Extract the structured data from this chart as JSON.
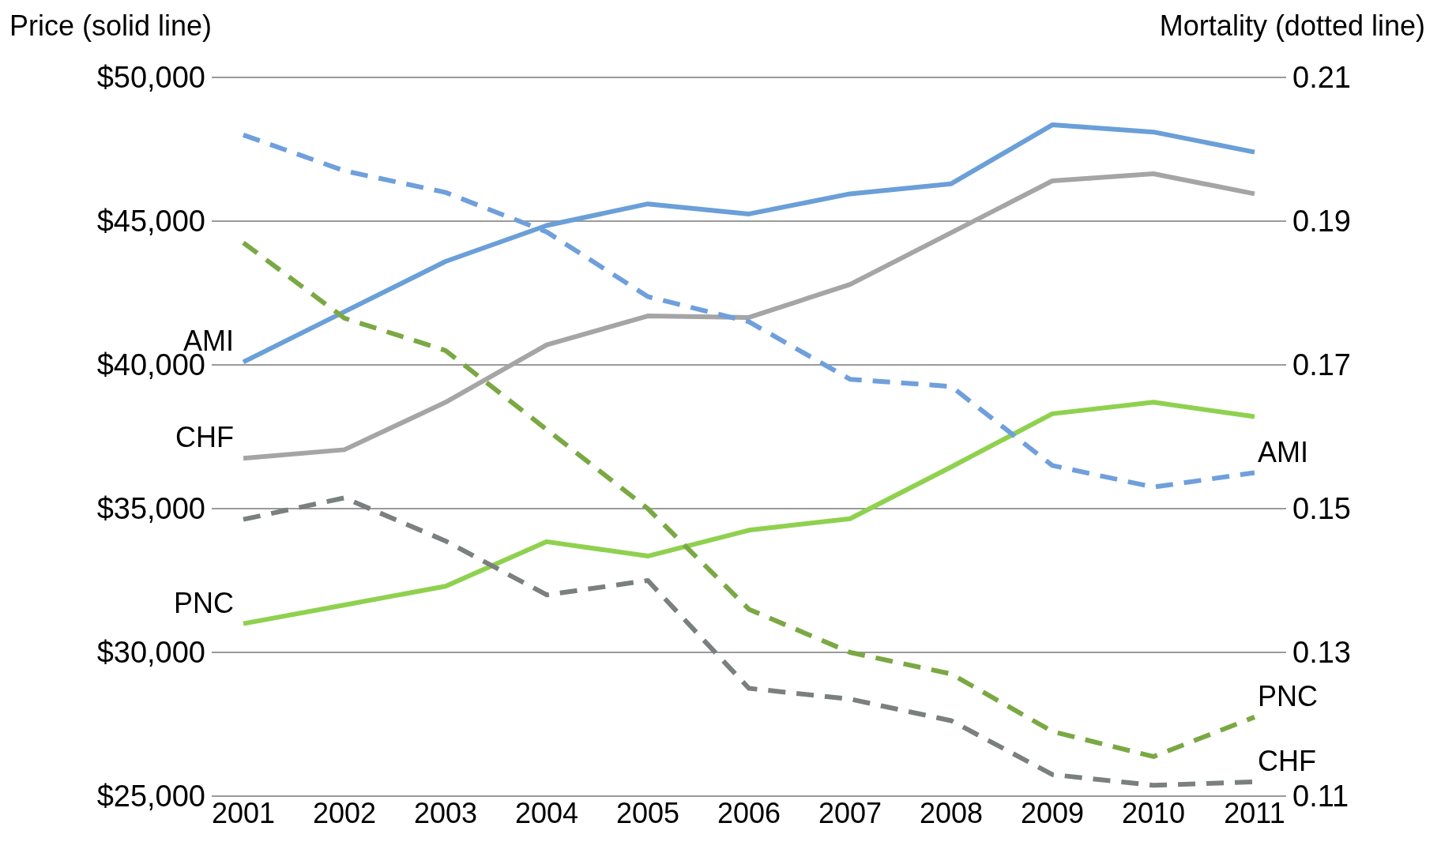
{
  "chart_data": {
    "type": "line",
    "ylabel": "Price (solid line)",
    "y2label": "Mortality (dotted line)",
    "categories": [
      "2001",
      "2002",
      "2003",
      "2004",
      "2005",
      "2006",
      "2007",
      "2008",
      "2009",
      "2010",
      "2011"
    ],
    "ylim": [
      25000,
      50000
    ],
    "yticks": [
      {
        "value": 25000,
        "label": "$25,000"
      },
      {
        "value": 30000,
        "label": "$30,000"
      },
      {
        "value": 35000,
        "label": "$35,000"
      },
      {
        "value": 40000,
        "label": "$40,000"
      },
      {
        "value": 45000,
        "label": "$45,000"
      },
      {
        "value": 50000,
        "label": "$50,000"
      }
    ],
    "y2lim": [
      0.11,
      0.21
    ],
    "y2ticks": [
      0.11,
      0.13,
      0.15,
      0.17,
      0.19,
      0.21
    ],
    "grid": "y",
    "legend": false,
    "marker": "none",
    "series": [
      {
        "name": "AMI",
        "color": "#6a9fd8",
        "line_style": "solid",
        "values": [
          40100,
          41850,
          43600,
          44850,
          45600,
          45250,
          45950,
          46300,
          48350,
          48100,
          47400
        ]
      },
      {
        "name": "CHF",
        "color": "#a5a5a5",
        "line_style": "solid",
        "values": [
          36750,
          37050,
          38700,
          40700,
          41700,
          41650,
          42800,
          44600,
          46400,
          46650,
          45950
        ]
      },
      {
        "name": "PNC",
        "color": "#8fd14f",
        "line_style": "solid",
        "values": [
          31000,
          31650,
          32300,
          33850,
          33350,
          34250,
          34650,
          36450,
          38300,
          38700,
          38200
        ]
      },
      {
        "name": "AMI",
        "color": "#6f9fdc",
        "line_style": "dashed",
        "axis": "y2",
        "values": [
          0.202,
          0.197,
          0.194,
          0.1885,
          0.1795,
          0.176,
          0.168,
          0.167,
          0.156,
          0.153,
          0.155
        ]
      },
      {
        "name": "PNC",
        "color": "#7aa843",
        "line_style": "dashed",
        "axis": "y2",
        "values": [
          0.187,
          0.1765,
          0.172,
          0.161,
          0.15,
          0.136,
          0.13,
          0.127,
          0.119,
          0.1155,
          0.121
        ]
      },
      {
        "name": "CHF",
        "color": "#7a7f7f",
        "line_style": "dashed",
        "axis": "y2",
        "values": [
          0.1485,
          0.1515,
          0.1455,
          0.138,
          0.14,
          0.125,
          0.1235,
          0.1205,
          0.113,
          0.1115,
          0.112
        ]
      }
    ]
  }
}
